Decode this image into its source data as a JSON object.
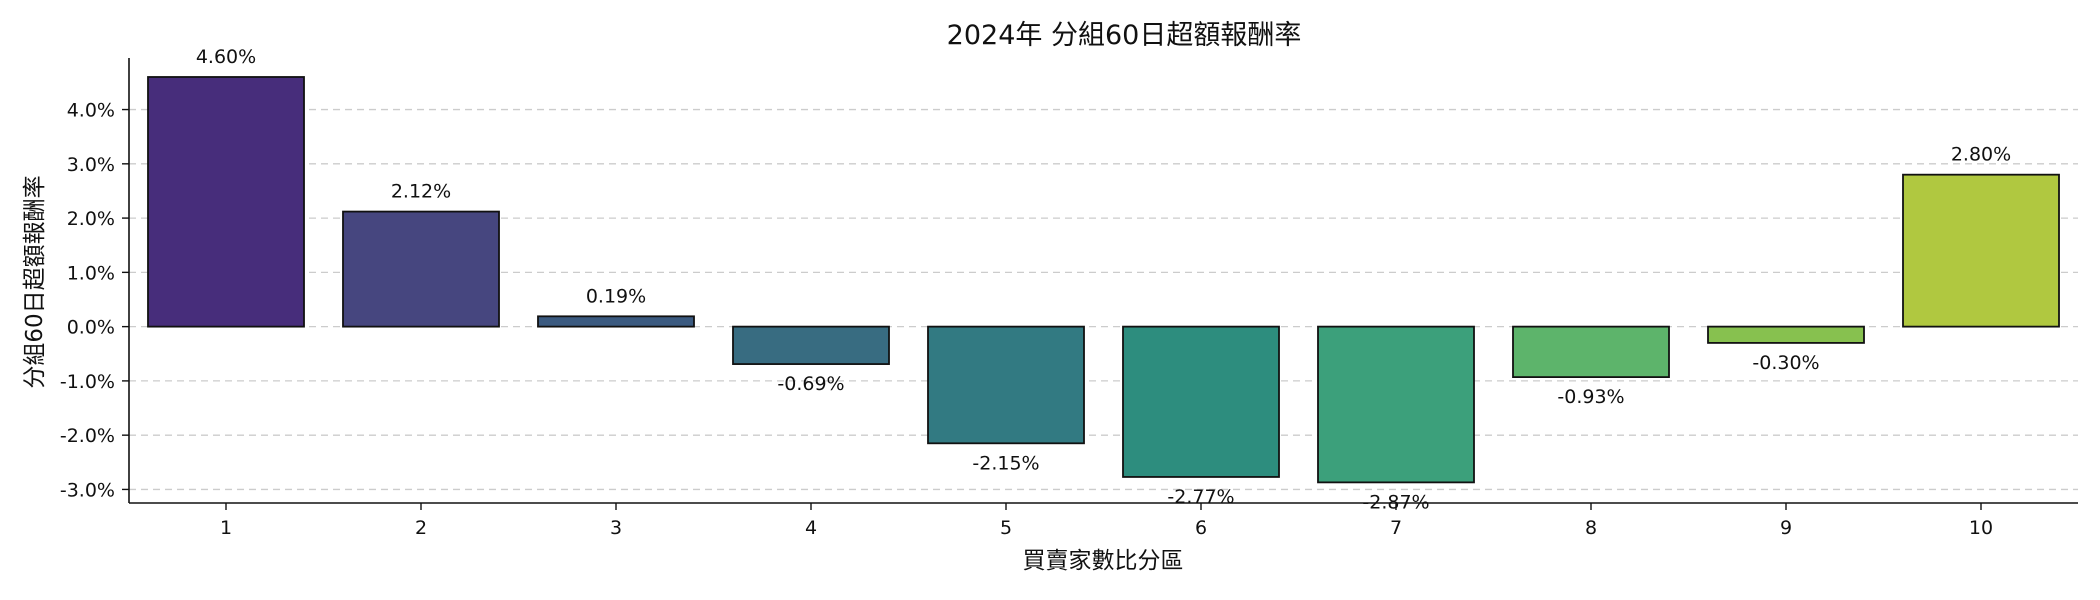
{
  "chart_data": {
    "type": "bar",
    "title": "2024年 分組60日超額報酬率",
    "xlabel": "買賣家數比分區",
    "ylabel": "分組60日超額報酬率",
    "categories": [
      "1",
      "2",
      "3",
      "4",
      "5",
      "6",
      "7",
      "8",
      "9",
      "10"
    ],
    "values": [
      4.6,
      2.12,
      0.19,
      -0.69,
      -2.15,
      -2.77,
      -2.87,
      -0.93,
      -0.3,
      2.8
    ],
    "value_labels": [
      "4.60%",
      "2.12%",
      "0.19%",
      "-0.69%",
      "-2.15%",
      "-2.77%",
      "-2.87%",
      "-0.93%",
      "-0.30%",
      "2.80%"
    ],
    "ylim": [
      -3.25,
      4.95
    ],
    "yticks": [
      -3,
      -2,
      -1,
      0,
      1,
      2,
      3,
      4
    ],
    "ytick_labels": [
      "-3.0%",
      "-2.0%",
      "-1.0%",
      "0.0%",
      "1.0%",
      "2.0%",
      "3.0%",
      "4.0%"
    ],
    "grid": "y-dashed",
    "legend": "none",
    "colors": [
      "#472d7b",
      "#46467f",
      "#3b5a80",
      "#386c81",
      "#327a82",
      "#2d8d7e",
      "#3ca07b",
      "#5db46b",
      "#87c14f",
      "#b0c840"
    ]
  }
}
